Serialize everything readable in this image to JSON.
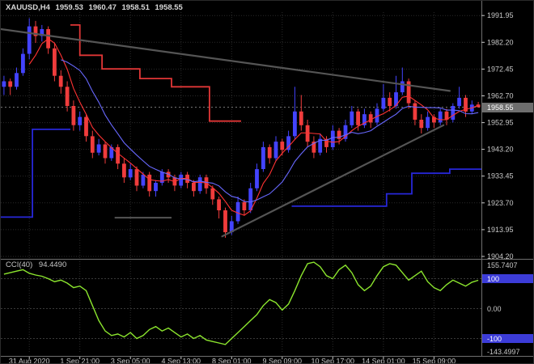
{
  "title": {
    "symbol_period": "XAUUSD,H4",
    "open": "1959.53",
    "high": "1960.47",
    "low": "1958.51",
    "close": "1958.55"
  },
  "colors": {
    "background": "#000000",
    "grid": "#2b2b2b",
    "axis_text": "#c9c9c9",
    "bull_candle": "#4343ff",
    "bear_candle": "#f03c3c",
    "trendline": "#555555",
    "separator": "#6f6f6f",
    "level_box": "#3c3cd8",
    "bid_box": "#6e6e6e",
    "bid_line": "#9b9b9b",
    "cci_line": "#8ce62e"
  },
  "chart_data": {
    "type": "candlestick",
    "symbol": "XAUUSD",
    "timeframe": "H4",
    "price_axis_labels": [
      {
        "text": "1991.95",
        "price": 1991.95
      },
      {
        "text": "1982.20",
        "price": 1982.2
      },
      {
        "text": "1972.45",
        "price": 1972.45
      },
      {
        "text": "1962.70",
        "price": 1962.7
      },
      {
        "text": "1952.95",
        "price": 1952.95
      },
      {
        "text": "1943.20",
        "price": 1943.2
      },
      {
        "text": "1933.45",
        "price": 1933.45
      },
      {
        "text": "1923.70",
        "price": 1923.7
      },
      {
        "text": "1913.95",
        "price": 1913.95
      },
      {
        "text": "1904.20",
        "price": 1904.2
      }
    ],
    "current_price": {
      "text": "1958.55",
      "price": 1958.55
    },
    "time_axis_labels": [
      {
        "text": "31 Aug 2020",
        "bar": 4
      },
      {
        "text": "1 Sep 21:00",
        "bar": 12
      },
      {
        "text": "3 Sep 05:00",
        "bar": 20
      },
      {
        "text": "4 Sep 13:00",
        "bar": 28
      },
      {
        "text": "8 Sep 01:00",
        "bar": 36
      },
      {
        "text": "9 Sep 09:00",
        "bar": 44
      },
      {
        "text": "10 Sep 17:00",
        "bar": 52
      },
      {
        "text": "14 Sep 01:00",
        "bar": 60
      },
      {
        "text": "15 Sep 09:00",
        "bar": 68
      }
    ],
    "candles": [
      [
        1966,
        1970,
        1963,
        1968
      ],
      [
        1968,
        1969,
        1963,
        1966
      ],
      [
        1966,
        1973,
        1965,
        1971
      ],
      [
        1971,
        1980,
        1970,
        1978
      ],
      [
        1978,
        1991,
        1976,
        1988
      ],
      [
        1988,
        1990,
        1982,
        1984.5
      ],
      [
        1984.5,
        1988.5,
        1982.5,
        1987
      ],
      [
        1987,
        1988,
        1978,
        1980
      ],
      [
        1980,
        1982,
        1968,
        1970
      ],
      [
        1970,
        1972,
        1963.5,
        1966
      ],
      [
        1966,
        1968,
        1957,
        1959
      ],
      [
        1959,
        1961,
        1950,
        1952
      ],
      [
        1952,
        1957,
        1950,
        1955
      ],
      [
        1955,
        1956,
        1946,
        1948
      ],
      [
        1948,
        1950,
        1940,
        1942
      ],
      [
        1942,
        1947,
        1941,
        1945
      ],
      [
        1945,
        1946,
        1938,
        1940
      ],
      [
        1940,
        1945,
        1939,
        1944
      ],
      [
        1944,
        1945,
        1936,
        1938
      ],
      [
        1938,
        1940,
        1931,
        1933
      ],
      [
        1933,
        1938,
        1932,
        1936
      ],
      [
        1936,
        1937,
        1928,
        1930
      ],
      [
        1930,
        1935,
        1929,
        1934
      ],
      [
        1934,
        1935,
        1926,
        1928
      ],
      [
        1928,
        1932,
        1926,
        1931
      ],
      [
        1931,
        1936,
        1930,
        1935
      ],
      [
        1935,
        1936,
        1931,
        1933
      ],
      [
        1933,
        1934,
        1928,
        1930
      ],
      [
        1930,
        1935,
        1929,
        1934
      ],
      [
        1934,
        1935,
        1929,
        1931
      ],
      [
        1931,
        1932,
        1926,
        1928
      ],
      [
        1928,
        1934,
        1927,
        1933
      ],
      [
        1933,
        1934,
        1927,
        1929
      ],
      [
        1929,
        1930,
        1923,
        1925
      ],
      [
        1925,
        1926,
        1918,
        1921
      ],
      [
        1921,
        1922,
        1911,
        1913
      ],
      [
        1913,
        1919,
        1912,
        1917
      ],
      [
        1917,
        1926,
        1916,
        1924
      ],
      [
        1924,
        1925,
        1919,
        1921
      ],
      [
        1921,
        1931,
        1920,
        1929
      ],
      [
        1929,
        1938,
        1928,
        1936
      ],
      [
        1936,
        1946,
        1935,
        1944
      ],
      [
        1944,
        1945,
        1938,
        1940
      ],
      [
        1940,
        1948,
        1939,
        1946
      ],
      [
        1946,
        1947,
        1941,
        1943
      ],
      [
        1943,
        1950,
        1942,
        1948
      ],
      [
        1948,
        1966,
        1947,
        1957
      ],
      [
        1957,
        1963,
        1950,
        1952
      ],
      [
        1952,
        1954,
        1944,
        1946
      ],
      [
        1946,
        1948,
        1940,
        1942
      ],
      [
        1942,
        1949,
        1941,
        1947
      ],
      [
        1947,
        1948,
        1942,
        1944
      ],
      [
        1944,
        1952,
        1943,
        1950
      ],
      [
        1950,
        1951,
        1945,
        1947
      ],
      [
        1947,
        1954,
        1946,
        1952
      ],
      [
        1952,
        1959,
        1951,
        1957
      ],
      [
        1957,
        1958,
        1950,
        1952
      ],
      [
        1952,
        1958,
        1951,
        1956
      ],
      [
        1956,
        1957,
        1951,
        1953
      ],
      [
        1953,
        1960,
        1952,
        1958
      ],
      [
        1958,
        1967,
        1957,
        1962
      ],
      [
        1962,
        1964,
        1957,
        1959
      ],
      [
        1959,
        1970,
        1958,
        1964
      ],
      [
        1964,
        1973,
        1963,
        1968
      ],
      [
        1968,
        1969,
        1958,
        1960
      ],
      [
        1960,
        1961,
        1952,
        1954
      ],
      [
        1954,
        1956,
        1949,
        1951
      ],
      [
        1951,
        1957,
        1950,
        1955
      ],
      [
        1955,
        1956,
        1951,
        1953
      ],
      [
        1953,
        1958,
        1952,
        1957
      ],
      [
        1957,
        1958,
        1952,
        1954
      ],
      [
        1954,
        1960,
        1953,
        1959
      ],
      [
        1959,
        1966,
        1958,
        1962
      ],
      [
        1962,
        1963,
        1955,
        1957
      ],
      [
        1957,
        1961,
        1956,
        1959.5
      ],
      [
        1959.53,
        1960.47,
        1958.51,
        1958.55
      ]
    ],
    "overlays": {
      "moving_averages": [
        {
          "period": 5,
          "color": "#ff3232"
        },
        {
          "period": 10,
          "color": "#6868ff"
        }
      ],
      "step_lines": [
        {
          "color": "#2727d8",
          "segments": [
            [
              0,
              5,
              1918.5
            ],
            [
              5,
              11,
              1950.5
            ]
          ]
        },
        {
          "color": "#e03636",
          "segments": [
            [
              11,
              12.5,
              1988.5
            ],
            [
              12.5,
              16,
              1977.5
            ],
            [
              16,
              22,
              1972.5
            ],
            [
              22,
              27,
              1969
            ],
            [
              27,
              33,
              1966
            ],
            [
              33,
              38,
              1953.5
            ]
          ]
        },
        {
          "color": "#2727d8",
          "segments": [
            [
              46,
              61,
              1922.5
            ],
            [
              61,
              65,
              1927
            ],
            [
              65,
              71,
              1934.5
            ],
            [
              71,
              76,
              1936
            ]
          ]
        }
      ],
      "hlines": [
        {
          "from": 18,
          "to": 27,
          "price": 1918.3
        }
      ],
      "trendlines": [
        {
          "b1": 0,
          "p1": 1987.0,
          "b2": 71,
          "p2": 1964.5
        },
        {
          "b1": 35,
          "p1": 1911.5,
          "b2": 70,
          "p2": 1952.0
        }
      ]
    },
    "indicator": {
      "name_label": "CCI(40)",
      "value_label": "94.4490",
      "line_color": "#8ce62e",
      "scale_top_label": "155.7407",
      "scale_bottom_label": "-143.4997",
      "levels": [
        {
          "text": "100",
          "value": 100,
          "boxed": true
        },
        {
          "text": "0.00",
          "value": 0,
          "boxed": false
        },
        {
          "text": "-100",
          "value": -100,
          "boxed": true
        }
      ],
      "values": [
        115,
        120,
        125,
        130,
        118,
        112,
        108,
        100,
        90,
        95,
        85,
        70,
        75,
        60,
        10,
        -40,
        -75,
        -90,
        -85,
        -95,
        -80,
        -100,
        -90,
        -70,
        -60,
        -75,
        -65,
        -80,
        -95,
        -85,
        -100,
        -90,
        -105,
        -110,
        -115,
        -120,
        -100,
        -80,
        -60,
        -40,
        -20,
        10,
        30,
        20,
        -5,
        15,
        60,
        110,
        150,
        155,
        140,
        110,
        100,
        130,
        145,
        120,
        80,
        60,
        75,
        110,
        140,
        150,
        145,
        120,
        95,
        110,
        125,
        90,
        70,
        60,
        80,
        95,
        85,
        75,
        88,
        94.449
      ]
    }
  }
}
